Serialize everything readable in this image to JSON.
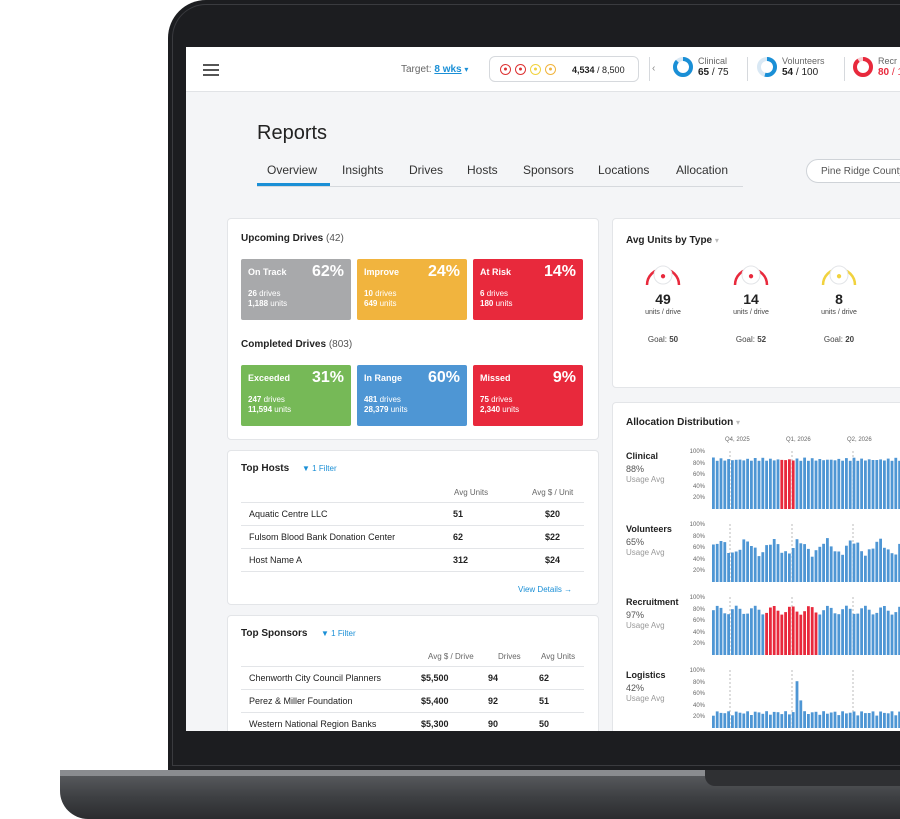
{
  "colors": {
    "blue": "#1a8fd6",
    "gray": "#a8a9ab",
    "yellow": "#f1b43e",
    "red": "#e8293c",
    "green": "#76b957",
    "lightblue": "#4e96d4"
  },
  "topbar": {
    "menu_icon": "hamburger-icon",
    "target_label": "Target:",
    "target_value": "8 wks",
    "units_value": "4,534",
    "units_total": "/ 8,500",
    "stats": [
      {
        "label": "Clinical",
        "value": "65",
        "total": "/ 75",
        "pct": 0.87,
        "color": "#1a8fd6"
      },
      {
        "label": "Volunteers",
        "value": "54",
        "total": "/ 100",
        "pct": 0.54,
        "color": "#1a8fd6"
      },
      {
        "label": "Recr",
        "value": "80",
        "total": "/ 1",
        "pct": 0.9,
        "color": "#e8293c"
      }
    ]
  },
  "page": {
    "title": "Reports"
  },
  "tabs": [
    "Overview",
    "Insights",
    "Drives",
    "Hosts",
    "Sponsors",
    "Locations",
    "Allocation"
  ],
  "location_select": "Pine Ridge County",
  "upcoming": {
    "title": "Upcoming Drives",
    "count": "(42)",
    "tiles": [
      {
        "name": "On Track",
        "pct": "62%",
        "drives": "26",
        "units": "1,188",
        "color": "#a8a9ab"
      },
      {
        "name": "Improve",
        "pct": "24%",
        "drives": "10",
        "units": "649",
        "color": "#f1b43e"
      },
      {
        "name": "At Risk",
        "pct": "14%",
        "drives": "6",
        "units": "180",
        "color": "#e8293c"
      }
    ]
  },
  "completed": {
    "title": "Completed Drives",
    "count": "(803)",
    "tiles": [
      {
        "name": "Exceeded",
        "pct": "31%",
        "drives": "247",
        "units": "11,594",
        "color": "#76b957"
      },
      {
        "name": "In Range",
        "pct": "60%",
        "drives": "481",
        "units": "28,379",
        "color": "#4e96d4"
      },
      {
        "name": "Missed",
        "pct": "9%",
        "drives": "75",
        "units": "2,340",
        "color": "#e8293c"
      }
    ]
  },
  "tile_labels": {
    "drives": "drives",
    "units": "units"
  },
  "top_hosts": {
    "title": "Top Hosts",
    "filter": "1 Filter",
    "headers": [
      "Avg Units",
      "Avg $ / Unit"
    ],
    "rows": [
      {
        "name": "Aquatic Centre LLC",
        "units": "51",
        "dollars": "$20"
      },
      {
        "name": "Fulsom Blood Bank Donation Center",
        "units": "62",
        "dollars": "$22"
      },
      {
        "name": "Host Name A",
        "units": "312",
        "dollars": "$24"
      }
    ],
    "view_details": "View Details"
  },
  "top_sponsors": {
    "title": "Top Sponsors",
    "filter": "1 Filter",
    "headers": [
      "Avg $ / Drive",
      "Drives",
      "Avg Units"
    ],
    "rows": [
      {
        "name": "Chenworth City Council Planners",
        "avg": "$5,500",
        "drives": "94",
        "units": "62"
      },
      {
        "name": "Perez & Miller Foundation",
        "avg": "$5,400",
        "drives": "92",
        "units": "51"
      },
      {
        "name": "Western National Region Banks",
        "avg": "$5,300",
        "drives": "90",
        "units": "50"
      }
    ]
  },
  "avg_units": {
    "title": "Avg Units by Type",
    "sub": "units / drive",
    "goal_label": "Goal:",
    "gauges": [
      {
        "value": "49",
        "goal": "50",
        "color": "#e8293c",
        "icon": "blood-drop-icon"
      },
      {
        "value": "14",
        "goal": "52",
        "color": "#e8293c",
        "icon": "blood-drop-icon"
      },
      {
        "value": "8",
        "goal": "20",
        "color": "#f1d23e",
        "icon": "platelets-icon"
      }
    ]
  },
  "allocation": {
    "title": "Allocation Distribution",
    "quarters": [
      "Q4, 2025",
      "Q1, 2026",
      "Q2, 2026"
    ],
    "y_ticks": [
      "100%",
      "80%",
      "60%",
      "40%",
      "20%"
    ],
    "sub": "Usage Avg",
    "rows": [
      {
        "name": "Clinical",
        "pct": "88%"
      },
      {
        "name": "Volunteers",
        "pct": "65%"
      },
      {
        "name": "Recruitment",
        "pct": "97%"
      },
      {
        "name": "Logistics",
        "pct": "42%"
      }
    ]
  }
}
